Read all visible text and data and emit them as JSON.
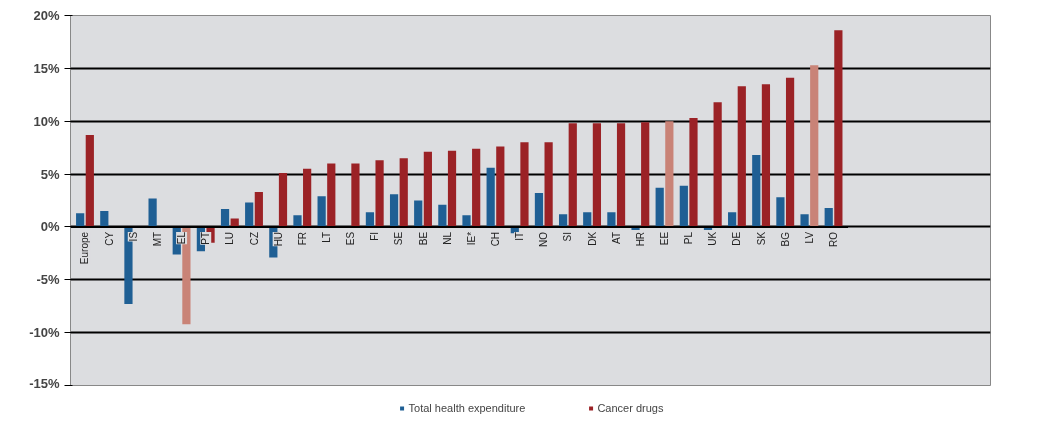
{
  "chart_data": {
    "type": "bar",
    "categories": [
      "Europe",
      "CY",
      "IS",
      "MT",
      "EL",
      "PT",
      "LU",
      "CZ",
      "HU",
      "FR",
      "LT",
      "ES",
      "FI",
      "SE",
      "BE",
      "NL",
      "IE*",
      "CH",
      "IT",
      "NO",
      "SI",
      "DK",
      "AT",
      "HR",
      "EE",
      "PL",
      "UK",
      "DE",
      "SK",
      "BG",
      "LV",
      "RO"
    ],
    "series": [
      {
        "name": "Total health expenditure",
        "color": "#1f5f94",
        "values": [
          1.3,
          1.5,
          -7.3,
          2.7,
          -2.6,
          -2.3,
          1.7,
          2.3,
          -2.9,
          1.1,
          2.9,
          null,
          1.4,
          3.1,
          2.5,
          2.1,
          1.1,
          5.6,
          -0.6,
          3.2,
          1.2,
          1.4,
          1.4,
          -0.3,
          3.7,
          3.9,
          -0.3,
          1.4,
          6.8,
          2.8,
          1.2,
          1.8
        ]
      },
      {
        "name": "Cancer drugs",
        "color": "#9b2226",
        "colors": [
          "#9b2226",
          "#9b2226",
          "#9b2226",
          "#9b2226",
          "#c98377",
          "#9b2226",
          "#9b2226",
          "#9b2226",
          "#9b2226",
          "#9b2226",
          "#9b2226",
          "#9b2226",
          "#9b2226",
          "#9b2226",
          "#9b2226",
          "#9b2226",
          "#9b2226",
          "#9b2226",
          "#9b2226",
          "#9b2226",
          "#9b2226",
          "#9b2226",
          "#9b2226",
          "#9b2226",
          "#c98377",
          "#9b2226",
          "#9b2226",
          "#9b2226",
          "#9b2226",
          "#9b2226",
          "#c98377",
          "#9b2226"
        ],
        "values": [
          8.7,
          null,
          null,
          null,
          -9.2,
          -1.5,
          0.8,
          3.3,
          5.1,
          5.5,
          6.0,
          6.0,
          6.3,
          6.5,
          7.1,
          7.2,
          7.4,
          7.6,
          8.0,
          8.0,
          9.8,
          9.8,
          9.8,
          9.9,
          10.0,
          10.3,
          11.8,
          13.3,
          13.5,
          14.1,
          15.3,
          18.6
        ]
      }
    ],
    "ylim": [
      -15,
      20
    ],
    "yticks": [
      {
        "value": -15,
        "label": "-15%"
      },
      {
        "value": -10,
        "label": "-10%"
      },
      {
        "value": -5,
        "label": "-5%"
      },
      {
        "value": 0,
        "label": "0%"
      },
      {
        "value": 5,
        "label": "5%"
      },
      {
        "value": 10,
        "label": "10%"
      },
      {
        "value": 15,
        "label": "15%"
      },
      {
        "value": 20,
        "label": "20%"
      }
    ],
    "grid": "y",
    "legend": "bottom"
  }
}
